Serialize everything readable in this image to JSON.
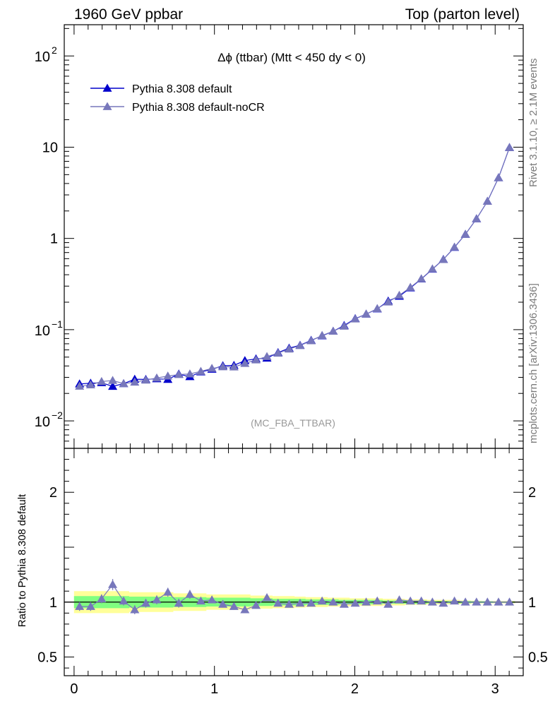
{
  "header": {
    "left": "1960 GeV ppbar",
    "right": "Top (parton level)"
  },
  "side_labels": {
    "rivet": "Rivet 3.1.10, ≥ 2.1M events",
    "mcplots": "mcplots.cern.ch [arXiv:1306.3436]"
  },
  "colors": {
    "default": "#0000cc",
    "nocr": "#7777bb",
    "band_green": "#80ff80",
    "band_yellow": "#ffff99"
  },
  "chart_data": [
    {
      "type": "line",
      "title": "Δϕ (ttbar) (Mtt < 450 dy < 0)",
      "watermark": "(MC_FBA_TTBAR)",
      "yscale": "log",
      "xlim": [
        -0.07,
        3.2
      ],
      "ylim": [
        0.005,
        220
      ],
      "yticks": [
        {
          "value": 0.01,
          "label": "10",
          "exp": "−2"
        },
        {
          "value": 0.1,
          "label": "10",
          "exp": "−1"
        },
        {
          "value": 1,
          "label": "1",
          "exp": ""
        },
        {
          "value": 10,
          "label": "10",
          "exp": ""
        },
        {
          "value": 100,
          "label": "10",
          "exp": "2"
        }
      ],
      "legend_position": "top-left",
      "x": [
        0.039,
        0.118,
        0.196,
        0.275,
        0.353,
        0.432,
        0.511,
        0.589,
        0.668,
        0.746,
        0.825,
        0.903,
        0.982,
        1.06,
        1.139,
        1.217,
        1.296,
        1.374,
        1.453,
        1.532,
        1.61,
        1.689,
        1.767,
        1.846,
        1.924,
        2.003,
        2.081,
        2.16,
        2.238,
        2.317,
        2.396,
        2.474,
        2.553,
        2.631,
        2.71,
        2.788,
        2.867,
        2.945,
        3.024,
        3.102
      ],
      "series": [
        {
          "name": "Pythia 8.308 default",
          "values": [
            0.0254,
            0.0259,
            0.0262,
            0.0239,
            0.0256,
            0.0286,
            0.0285,
            0.0289,
            0.0285,
            0.0326,
            0.0305,
            0.0344,
            0.0368,
            0.0402,
            0.0406,
            0.0458,
            0.0478,
            0.0487,
            0.056,
            0.0627,
            0.0675,
            0.0764,
            0.0855,
            0.096,
            0.111,
            0.132,
            0.148,
            0.169,
            0.206,
            0.232,
            0.287,
            0.359,
            0.46,
            0.589,
            0.797,
            1.11,
            1.64,
            2.55,
            4.62,
            9.9
          ]
        },
        {
          "name": "Pythia 8.308 default-noCR",
          "values": [
            0.024,
            0.0248,
            0.027,
            0.0277,
            0.0256,
            0.0266,
            0.028,
            0.0295,
            0.031,
            0.0322,
            0.0327,
            0.0349,
            0.0376,
            0.0392,
            0.039,
            0.0426,
            0.0466,
            0.0507,
            0.0552,
            0.0613,
            0.0669,
            0.0756,
            0.0863,
            0.0961,
            0.109,
            0.131,
            0.148,
            0.17,
            0.201,
            0.238,
            0.291,
            0.361,
            0.463,
            0.587,
            0.803,
            1.11,
            1.64,
            2.55,
            4.62,
            9.9
          ]
        }
      ]
    },
    {
      "type": "line",
      "ylabel": "Ratio to Pythia 8.308 default",
      "xlim": [
        -0.07,
        3.2
      ],
      "ylim": [
        0.33,
        2.4
      ],
      "xticks": [
        0,
        1,
        2,
        3
      ],
      "yticks": [
        0.5,
        1,
        2
      ],
      "reference": 1,
      "ratio_values": [
        0.96,
        0.96,
        1.03,
        1.16,
        1.01,
        0.93,
        0.99,
        1.02,
        1.09,
        0.99,
        1.07,
        1.01,
        1.02,
        0.98,
        0.96,
        0.93,
        0.97,
        1.04,
        0.99,
        0.98,
        0.99,
        0.99,
        1.01,
        1.0,
        0.98,
        0.99,
        1.0,
        1.01,
        0.98,
        1.02,
        1.01,
        1.01,
        1.0,
        0.99,
        1.01,
        1.0,
        1.0,
        1.0,
        1.0,
        1.0
      ],
      "ratio_errors": [
        0.04,
        0.04,
        0.04,
        0.05,
        0.04,
        0.04,
        0.04,
        0.04,
        0.04,
        0.04,
        0.04,
        0.03,
        0.03,
        0.03,
        0.03,
        0.03,
        0.03,
        0.03,
        0.02,
        0.02,
        0.02,
        0.02,
        0.02,
        0.02,
        0.02,
        0.01,
        0.01,
        0.01,
        0.01,
        0.01,
        0.01,
        0.01,
        0.01,
        0.01,
        0.01,
        0.01,
        0.005,
        0.005,
        0.005,
        0.005
      ],
      "band_green": [
        0.055,
        0.055,
        0.055,
        0.055,
        0.055,
        0.05,
        0.05,
        0.05,
        0.05,
        0.045,
        0.045,
        0.045,
        0.04,
        0.04,
        0.04,
        0.04,
        0.035,
        0.035,
        0.03,
        0.03,
        0.03,
        0.025,
        0.025,
        0.025,
        0.02,
        0.02,
        0.02,
        0.02,
        0.015,
        0.015,
        0.015,
        0.015,
        0.01,
        0.01,
        0.01,
        0.01,
        0.008,
        0.008,
        0.006,
        0.006
      ],
      "band_yellow": [
        0.1,
        0.1,
        0.1,
        0.1,
        0.1,
        0.09,
        0.09,
        0.09,
        0.09,
        0.08,
        0.08,
        0.08,
        0.07,
        0.07,
        0.07,
        0.07,
        0.06,
        0.06,
        0.055,
        0.055,
        0.05,
        0.045,
        0.045,
        0.04,
        0.04,
        0.035,
        0.035,
        0.035,
        0.03,
        0.03,
        0.025,
        0.025,
        0.02,
        0.02,
        0.02,
        0.015,
        0.012,
        0.01,
        0.01,
        0.01
      ]
    }
  ]
}
